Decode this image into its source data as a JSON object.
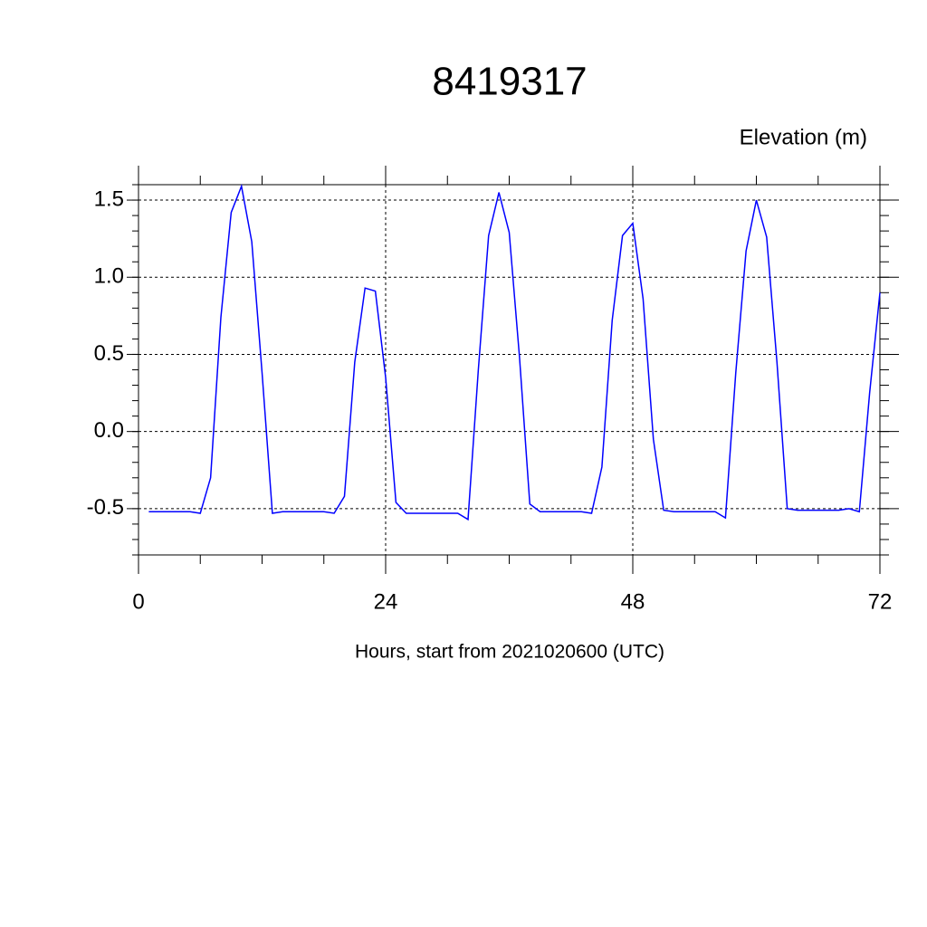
{
  "chart_data": {
    "type": "line",
    "title": "8419317",
    "ylabel": "Elevation (m)",
    "xlabel": "Hours, start from 2021020600 (UTC)",
    "x": [
      1,
      2,
      3,
      4,
      5,
      6,
      7,
      8,
      9,
      10,
      11,
      12,
      13,
      14,
      15,
      16,
      17,
      18,
      19,
      20,
      21,
      22,
      23,
      24,
      25,
      26,
      27,
      28,
      29,
      30,
      31,
      32,
      33,
      34,
      35,
      36,
      37,
      38,
      39,
      40,
      41,
      42,
      43,
      44,
      45,
      46,
      47,
      48,
      49,
      50,
      51,
      52,
      53,
      54,
      55,
      56,
      57,
      58,
      59,
      60,
      61,
      62,
      63,
      64,
      65,
      66,
      67,
      68,
      69,
      70,
      71,
      72
    ],
    "series": [
      {
        "name": "Elevation",
        "color": "#0000ff",
        "values": [
          -0.52,
          -0.52,
          -0.52,
          -0.52,
          -0.52,
          -0.53,
          -0.3,
          0.74,
          1.42,
          1.59,
          1.23,
          0.38,
          -0.53,
          -0.52,
          -0.52,
          -0.52,
          -0.52,
          -0.52,
          -0.53,
          -0.42,
          0.45,
          0.93,
          0.91,
          0.35,
          -0.46,
          -0.53,
          -0.53,
          -0.53,
          -0.53,
          -0.53,
          -0.53,
          -0.57,
          0.4,
          1.27,
          1.55,
          1.29,
          0.48,
          -0.47,
          -0.52,
          -0.52,
          -0.52,
          -0.52,
          -0.52,
          -0.53,
          -0.23,
          0.72,
          1.27,
          1.35,
          0.86,
          -0.05,
          -0.51,
          -0.52,
          -0.52,
          -0.52,
          -0.52,
          -0.52,
          -0.56,
          0.38,
          1.17,
          1.5,
          1.26,
          0.45,
          -0.5,
          -0.51,
          -0.51,
          -0.51,
          -0.51,
          -0.51,
          -0.5,
          -0.52,
          0.25,
          0.9
        ]
      }
    ],
    "xlim": [
      0,
      72
    ],
    "xticks": [
      0,
      24,
      48,
      72
    ],
    "ylim": [
      -0.8,
      1.6
    ],
    "yticks": [
      1.5,
      {
        "value": 1.0,
        "label": "1.0"
      },
      0.5,
      {
        "value": 0.0,
        "label": "0.0"
      },
      -0.5
    ],
    "grid": true
  }
}
